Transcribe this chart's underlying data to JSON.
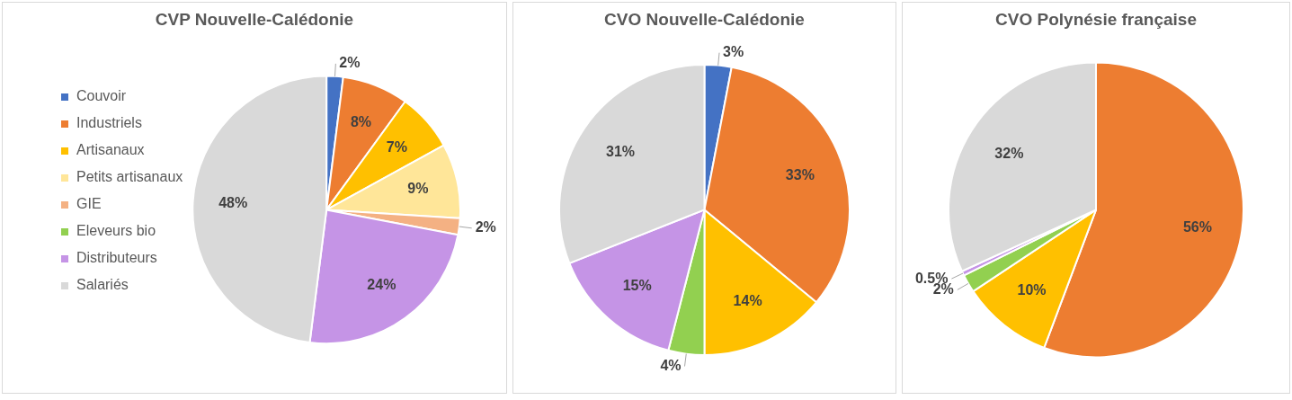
{
  "chart_data": [
    {
      "type": "pie",
      "title": "CVP Nouvelle-Calédonie",
      "legend": "left",
      "categories": [
        "Couvoir",
        "Industriels",
        "Artisanaux",
        "Petits artisanaux",
        "GIE",
        "Eleveurs bio",
        "Distributeurs",
        "Salariés"
      ],
      "values": [
        2,
        8,
        7,
        9,
        2,
        0,
        24,
        48
      ],
      "value_labels": [
        "2%",
        "8%",
        "7%",
        "9%",
        "2%",
        null,
        "24%",
        "48%"
      ],
      "colors": [
        "#4472c4",
        "#ed7d31",
        "#ffc000",
        "#ffe699",
        "#f4b183",
        "#92d050",
        "#c594e6",
        "#d9d9d9"
      ]
    },
    {
      "type": "pie",
      "title": "CVO Nouvelle-Calédonie",
      "legend": false,
      "values": [
        3,
        33,
        14,
        4,
        15,
        31
      ],
      "value_labels": [
        "3%",
        "33%",
        "14%",
        "4%",
        "15%",
        "31%"
      ],
      "colors": [
        "#4472c4",
        "#ed7d31",
        "#ffc000",
        "#92d050",
        "#c594e6",
        "#d9d9d9"
      ]
    },
    {
      "type": "pie",
      "title": "CVO Polynésie française",
      "legend": false,
      "values": [
        56,
        10,
        2,
        0.5,
        32
      ],
      "value_labels": [
        "56%",
        "10%",
        "2%",
        "0.5%",
        "32%"
      ],
      "colors": [
        "#ed7d31",
        "#ffc000",
        "#92d050",
        "#c594e6",
        "#d9d9d9"
      ]
    }
  ]
}
